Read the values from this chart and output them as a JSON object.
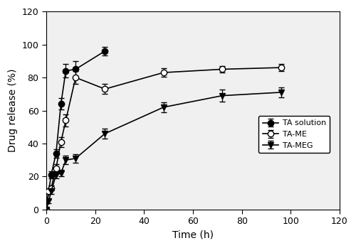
{
  "ta_sol": {
    "x": [
      0,
      1,
      2,
      4,
      6,
      8,
      12,
      24
    ],
    "y": [
      0,
      11,
      21,
      34,
      64,
      84,
      85,
      96
    ],
    "yerr": [
      0,
      1.0,
      2.0,
      2.5,
      3.5,
      4.0,
      5.0,
      2.5
    ],
    "label": "TA solution",
    "marker": "o",
    "markerfacecolor": "black",
    "markeredgecolor": "black"
  },
  "ta_me": {
    "x": [
      0,
      1,
      2,
      4,
      6,
      8,
      12,
      24,
      48,
      72,
      96
    ],
    "y": [
      0,
      11,
      13,
      25,
      41,
      54,
      80,
      73,
      83,
      85,
      86
    ],
    "yerr": [
      0,
      1.5,
      1.5,
      2.5,
      3.0,
      3.5,
      4.0,
      3.0,
      2.5,
      2.0,
      2.0
    ],
    "label": "TA-ME",
    "marker": "o",
    "markerfacecolor": "white",
    "markeredgecolor": "black"
  },
  "ta_meg": {
    "x": [
      0,
      1,
      2,
      4,
      6,
      8,
      12,
      24,
      48,
      72,
      96
    ],
    "y": [
      0,
      5,
      11,
      21,
      22,
      30,
      31,
      46,
      62,
      69,
      71
    ],
    "yerr": [
      0,
      1.0,
      1.5,
      2.0,
      2.0,
      2.5,
      2.5,
      3.0,
      3.0,
      3.5,
      3.0
    ],
    "label": "TA-MEG",
    "marker": "v",
    "markerfacecolor": "black",
    "markeredgecolor": "black"
  },
  "xlabel": "Time (h)",
  "ylabel": "Drug release (%)",
  "xlim": [
    0,
    120
  ],
  "ylim": [
    0,
    120
  ],
  "xticks": [
    0,
    20,
    40,
    60,
    80,
    100,
    120
  ],
  "yticks": [
    0,
    20,
    40,
    60,
    80,
    100,
    120
  ],
  "legend_loc": "center right",
  "linewidth": 1.2,
  "markersize": 6,
  "capsize": 3,
  "elinewidth": 0.9,
  "figure_facecolor": "#ffffff",
  "axes_facecolor": "#f0f0f0"
}
